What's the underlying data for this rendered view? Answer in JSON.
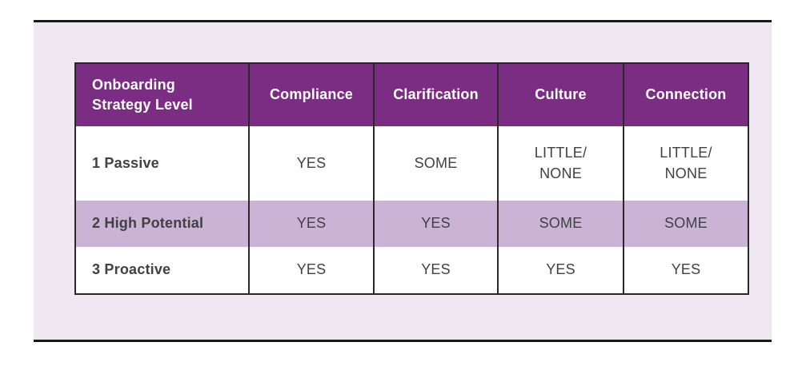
{
  "theme": {
    "header_bg": "#7B2D83",
    "header_text": "#FFFFFF",
    "alt_row_bg": "#CBB3D6",
    "row_bg": "#FFFFFF",
    "panel_bg": "#EFE8F3",
    "border_color": "#2B2728",
    "rule_color": "#1C1819",
    "body_text": "#414042"
  },
  "table": {
    "columns": [
      "Onboarding\nStrategy Level",
      "Compliance",
      "Clarification",
      "Culture",
      "Connection"
    ],
    "rows": [
      [
        "1 Passive",
        "YES",
        "SOME",
        "LITTLE/\nNONE",
        "LITTLE/\nNONE"
      ],
      [
        "2 High Potential",
        "YES",
        "YES",
        "SOME",
        "SOME"
      ],
      [
        "3 Proactive",
        "YES",
        "YES",
        "YES",
        "YES"
      ]
    ]
  },
  "chart_data": {
    "type": "table",
    "columns": [
      "Onboarding Strategy Level",
      "Compliance",
      "Clarification",
      "Culture",
      "Connection"
    ],
    "rows": [
      [
        "1 Passive",
        "YES",
        "SOME",
        "LITTLE/NONE",
        "LITTLE/NONE"
      ],
      [
        "2 High Potential",
        "YES",
        "YES",
        "SOME",
        "SOME"
      ],
      [
        "3 Proactive",
        "YES",
        "YES",
        "YES",
        "YES"
      ]
    ]
  }
}
